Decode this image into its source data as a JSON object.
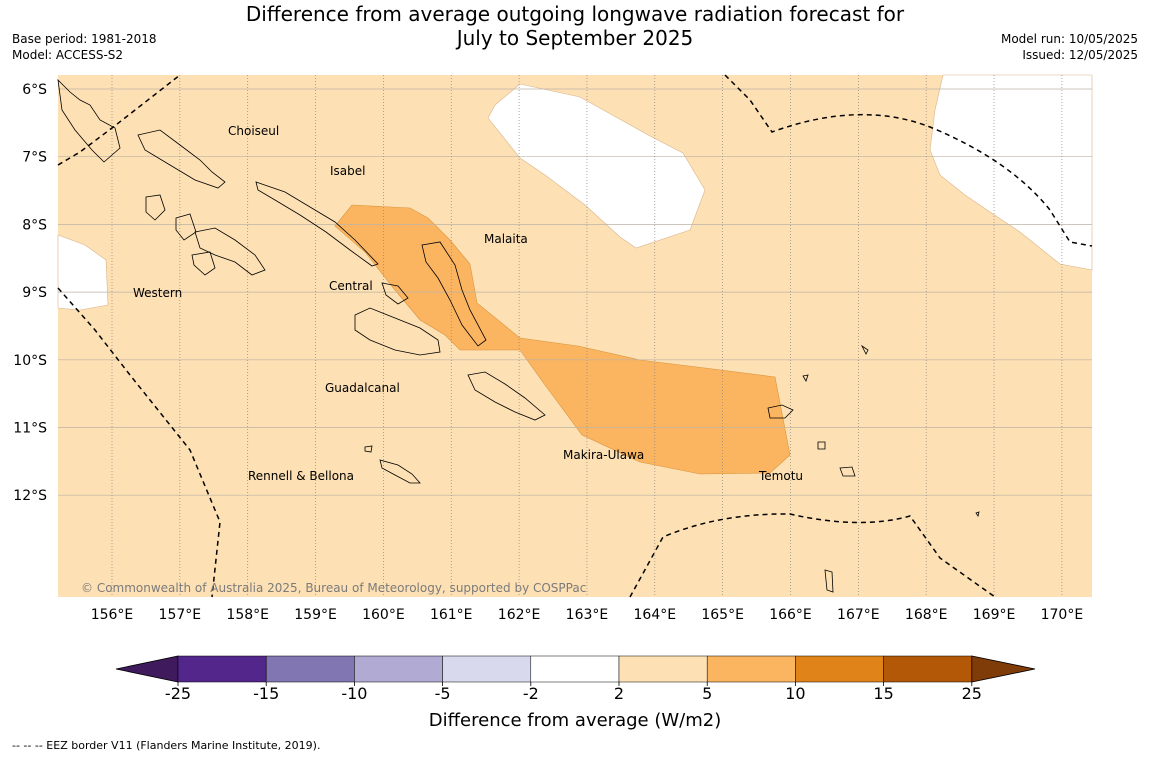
{
  "title": {
    "line1": "Difference from average outgoing longwave radiation forecast for",
    "line2": "July to September 2025"
  },
  "meta_left": {
    "base_period": "Base period: 1981-2018",
    "model": "Model: ACCESS-S2"
  },
  "meta_right": {
    "model_run": "Model run: 10/05/2025",
    "issued": "Issued: 12/05/2025"
  },
  "map": {
    "lat_labels": [
      "6°S",
      "7°S",
      "8°S",
      "9°S",
      "10°S",
      "11°S",
      "12°S"
    ],
    "lon_labels": [
      "156°E",
      "157°E",
      "158°E",
      "159°E",
      "160°E",
      "161°E",
      "162°E",
      "163°E",
      "164°E",
      "165°E",
      "166°E",
      "167°E",
      "168°E",
      "169°E",
      "170°E"
    ],
    "background_color": "#fde0b4",
    "region_labels": [
      "Choiseul",
      "Isabel",
      "Malaita",
      "Western",
      "Central",
      "Guadalcanal",
      "Makira-Ulawa",
      "Temotu",
      "Rennell & Bellona"
    ],
    "copyright": "© Commonwealth of Australia 2025, Bureau of Meteorology, supported by COSPPac"
  },
  "colorbar": {
    "title": "Difference from average (W/m2)",
    "ticks": [
      "-25",
      "-15",
      "-10",
      "-5",
      "-2",
      "2",
      "5",
      "10",
      "15",
      "25"
    ],
    "colors": [
      "#3f1a5c",
      "#53268b",
      "#8175b2",
      "#b1abd4",
      "#d8d9ec",
      "#ffffff",
      "#fde0b4",
      "#fbb561",
      "#e08318",
      "#b25806",
      "#7f3b08"
    ]
  },
  "footer": "--  --  -- EEZ border V11 (Flanders Marine Institute, 2019)."
}
